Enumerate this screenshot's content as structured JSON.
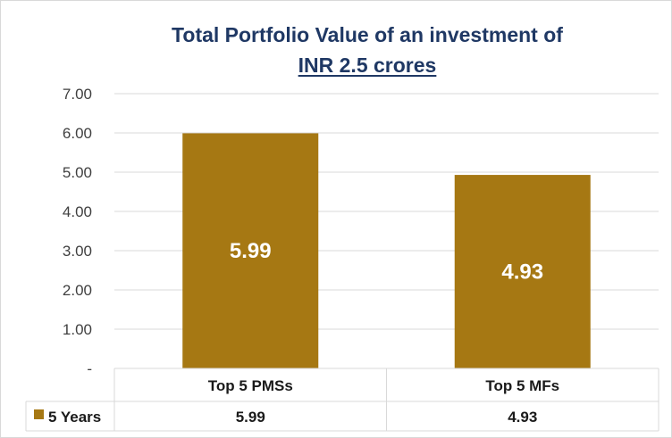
{
  "chart_data": {
    "type": "bar",
    "title_line1": "Total Portfolio Value of an investment of",
    "title_line2": "INR 2.5 crores",
    "categories": [
      "Top 5 PMSs",
      "Top 5 MFs"
    ],
    "series": [
      {
        "name": "5 Years",
        "values": [
          5.99,
          4.93
        ],
        "color": "#a67813"
      }
    ],
    "data_labels": [
      "5.99",
      "4.93"
    ],
    "y_ticks": [
      "-",
      "1.00",
      "2.00",
      "3.00",
      "4.00",
      "5.00",
      "6.00",
      "7.00"
    ],
    "ylim": [
      0,
      7
    ],
    "grid": true,
    "legend": "data-table"
  }
}
